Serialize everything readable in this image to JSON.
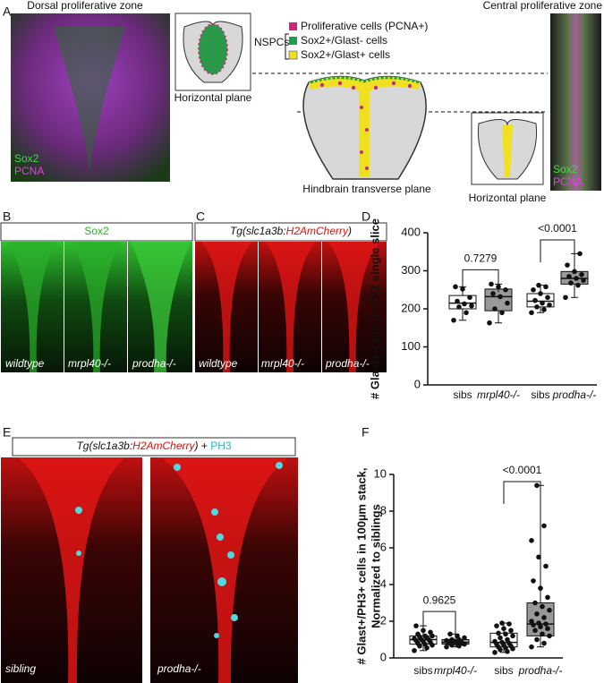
{
  "panel_labels": [
    "A",
    "B",
    "C",
    "D",
    "E",
    "F"
  ],
  "panel_a": {
    "left_title": "Dorsal proliferative zone",
    "right_title": "Central proliferative zone",
    "stain_labels": [
      "Sox2",
      "PCNA"
    ],
    "horizontal_plane": "Horizontal plane",
    "legend": {
      "group": "NSPCs",
      "items": [
        "Proliferative cells (PCNA+)",
        "Sox2+/Glast- cells",
        "Sox2+/Glast+ cells"
      ]
    },
    "transverse_plane": "Hindbrain transverse plane"
  },
  "panel_b": {
    "header": "Sox2",
    "labels": [
      "wildtype",
      "mrpl40-/-",
      "prodha-/-"
    ]
  },
  "panel_c": {
    "header": [
      "Tg(slc1a3b:",
      "H2AmCherry",
      ")"
    ],
    "labels": [
      "wildtype",
      "mrpl40-/-",
      "prodha-/-"
    ]
  },
  "panel_e": {
    "header": [
      "Tg(slc1a3b:",
      "H2AmCherry",
      ")",
      " + ",
      "PH3"
    ],
    "labels": [
      "sibling",
      "prodha-/-"
    ]
  },
  "chart_data": [
    {
      "type": "box",
      "ylabel": [
        "# Glast+ cells in CPZ single slice"
      ],
      "categories": [
        "sibs",
        "mrpl40-/-",
        "sibs",
        "prodha-/-"
      ],
      "colors": [
        "#ffffff",
        "#999999",
        "#ffffff",
        "#999999"
      ],
      "ylim": [
        0,
        400
      ],
      "yticks": [
        0,
        100,
        200,
        300,
        400
      ],
      "annotations": [
        "0.7279",
        "<0.0001"
      ],
      "boxes": [
        {
          "whisker_low": 170,
          "q1": 200,
          "median": 215,
          "q3": 235,
          "whisker_high": 258,
          "points": [
            170,
            190,
            205,
            208,
            213,
            220,
            230,
            252,
            258
          ]
        },
        {
          "whisker_low": 163,
          "q1": 195,
          "median": 232,
          "q3": 252,
          "whisker_high": 265,
          "points": [
            163,
            190,
            200,
            215,
            232,
            240,
            250,
            258,
            265
          ]
        },
        {
          "whisker_low": 190,
          "q1": 205,
          "median": 220,
          "q3": 240,
          "whisker_high": 262,
          "points": [
            190,
            198,
            205,
            210,
            215,
            222,
            230,
            240,
            250,
            258,
            262
          ]
        },
        {
          "whisker_low": 230,
          "q1": 265,
          "median": 280,
          "q3": 298,
          "whisker_high": 345,
          "points": [
            230,
            262,
            268,
            275,
            280,
            285,
            290,
            298,
            315,
            345
          ]
        }
      ]
    },
    {
      "type": "box",
      "ylabel": [
        "# Glast+/PH3+ cells in 100µm stack,",
        "Normalized to siblings"
      ],
      "categories": [
        "sibs",
        "mrpl40-/-",
        "sibs",
        "prodha-/-"
      ],
      "colors": [
        "#ffffff",
        "#999999",
        "#ffffff",
        "#999999"
      ],
      "ylim": [
        0,
        10
      ],
      "yticks": [
        0,
        2,
        4,
        6,
        8,
        10
      ],
      "annotations": [
        "0.9625",
        "<0.0001"
      ],
      "boxes": [
        {
          "whisker_low": 0.4,
          "q1": 0.75,
          "median": 1.0,
          "q3": 1.2,
          "whisker_high": 1.75,
          "points": [
            0.4,
            0.55,
            0.65,
            0.7,
            0.75,
            0.8,
            0.85,
            0.9,
            0.95,
            1.0,
            1.0,
            1.05,
            1.1,
            1.15,
            1.2,
            1.2,
            1.3,
            1.4,
            1.5,
            1.75
          ]
        },
        {
          "whisker_low": 0.6,
          "q1": 0.75,
          "median": 0.85,
          "q3": 1.0,
          "whisker_high": 1.3,
          "points": [
            0.6,
            0.65,
            0.7,
            0.75,
            0.75,
            0.8,
            0.8,
            0.85,
            0.85,
            0.9,
            0.9,
            0.95,
            1.0,
            1.0,
            1.1,
            1.2,
            1.3
          ]
        },
        {
          "whisker_low": 0.3,
          "q1": 0.6,
          "median": 0.85,
          "q3": 1.35,
          "whisker_high": 1.9,
          "points": [
            0.3,
            0.35,
            0.45,
            0.5,
            0.55,
            0.6,
            0.65,
            0.7,
            0.75,
            0.8,
            0.85,
            0.9,
            1.0,
            1.1,
            1.2,
            1.3,
            1.35,
            1.5,
            1.6,
            1.75,
            1.85,
            1.9
          ]
        },
        {
          "whisker_low": 0.6,
          "q1": 1.2,
          "median": 1.85,
          "q3": 3.0,
          "whisker_high": 9.4,
          "points": [
            0.6,
            0.8,
            1.0,
            1.2,
            1.3,
            1.5,
            1.6,
            1.7,
            1.8,
            1.85,
            1.9,
            2.0,
            2.2,
            2.4,
            2.6,
            2.8,
            3.0,
            3.3,
            3.8,
            4.2,
            5.0,
            5.5,
            6.4,
            7.2,
            9.4
          ]
        }
      ]
    }
  ]
}
